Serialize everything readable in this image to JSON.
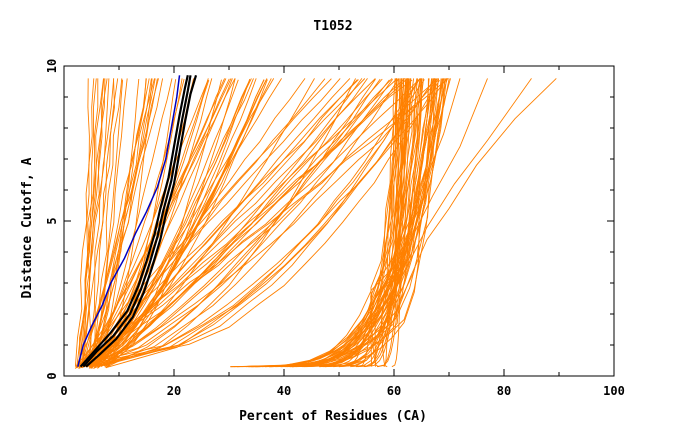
{
  "chart_data": {
    "type": "line",
    "title": "T1052",
    "xlabel": "Percent of Residues (CA)",
    "ylabel": "Distance Cutoff, A",
    "xlim": [
      0,
      100
    ],
    "ylim": [
      0,
      10
    ],
    "x_ticks": [
      "0",
      "20",
      "40",
      "60",
      "80",
      "100"
    ],
    "y_ticks": [
      "0",
      "5",
      "10"
    ],
    "grid": false,
    "legend": "none",
    "colors": {
      "models": "#ff8000",
      "highlight_blue": "#0000c0",
      "highlight_black": "#000000"
    },
    "highlight_series": [
      {
        "color": "#0000c0",
        "points": [
          [
            2.5,
            0.3
          ],
          [
            3.5,
            1.0
          ],
          [
            5,
            1.6
          ],
          [
            7,
            2.3
          ],
          [
            8.5,
            3.0
          ],
          [
            11,
            3.8
          ],
          [
            13,
            4.6
          ],
          [
            15,
            5.3
          ],
          [
            17,
            6.1
          ],
          [
            18.5,
            7.0
          ],
          [
            19.5,
            8.0
          ],
          [
            20.5,
            9.0
          ],
          [
            21,
            9.7
          ]
        ]
      },
      {
        "color": "#000000",
        "points": [
          [
            3.5,
            0.3
          ],
          [
            6,
            0.8
          ],
          [
            9,
            1.3
          ],
          [
            12,
            2.0
          ],
          [
            14,
            2.8
          ],
          [
            15.5,
            3.6
          ],
          [
            17,
            4.5
          ],
          [
            18,
            5.3
          ],
          [
            19.5,
            6.3
          ],
          [
            20.5,
            7.3
          ],
          [
            21.5,
            8.3
          ],
          [
            22.5,
            9.2
          ],
          [
            23,
            9.7
          ]
        ]
      },
      {
        "color": "#000000",
        "points": [
          [
            3,
            0.3
          ],
          [
            5.5,
            0.8
          ],
          [
            8.5,
            1.4
          ],
          [
            11.5,
            2.1
          ],
          [
            13.5,
            2.9
          ],
          [
            15,
            3.7
          ],
          [
            16.5,
            4.6
          ],
          [
            17.5,
            5.4
          ],
          [
            19,
            6.4
          ],
          [
            20,
            7.4
          ],
          [
            21,
            8.4
          ],
          [
            22,
            9.3
          ],
          [
            22.5,
            9.7
          ]
        ]
      },
      {
        "color": "#000000",
        "points": [
          [
            4,
            0.3
          ],
          [
            6.5,
            0.7
          ],
          [
            9.5,
            1.2
          ],
          [
            12.5,
            1.9
          ],
          [
            14.5,
            2.7
          ],
          [
            16,
            3.5
          ],
          [
            17.5,
            4.4
          ],
          [
            18.5,
            5.2
          ],
          [
            20,
            6.2
          ],
          [
            21,
            7.2
          ],
          [
            22,
            8.2
          ],
          [
            23,
            9.1
          ],
          [
            24,
            9.7
          ]
        ]
      }
    ],
    "model_families": {
      "vertical_left": {
        "count": 22,
        "x_start": [
          2,
          6
        ],
        "x_end": [
          4,
          18
        ]
      },
      "fan_middle": {
        "count": 70,
        "x_start": [
          2,
          8
        ],
        "x_end": [
          10,
          70
        ]
      },
      "dense_right": {
        "count": 60,
        "x_start": [
          30,
          60
        ],
        "x_mid": [
          55,
          62
        ],
        "x_end": [
          60,
          70
        ]
      },
      "outliers_right": [
        [
          [
            60,
            1.8
          ],
          [
            63,
            3.2
          ],
          [
            66,
            4.4
          ],
          [
            70,
            5.4
          ],
          [
            75,
            6.8
          ],
          [
            82,
            8.3
          ],
          [
            89.5,
            9.6
          ]
        ],
        [
          [
            58,
            2.0
          ],
          [
            62,
            3.4
          ],
          [
            66,
            4.8
          ],
          [
            71,
            6.2
          ],
          [
            77,
            7.6
          ],
          [
            85,
            9.6
          ]
        ],
        [
          [
            57,
            2.1
          ],
          [
            62,
            4.0
          ],
          [
            67,
            5.8
          ],
          [
            72,
            7.4
          ],
          [
            77,
            9.6
          ]
        ],
        [
          [
            57,
            2.3
          ],
          [
            61,
            4.2
          ],
          [
            65,
            6.0
          ],
          [
            69,
            7.8
          ],
          [
            72,
            9.6
          ]
        ]
      ]
    }
  }
}
